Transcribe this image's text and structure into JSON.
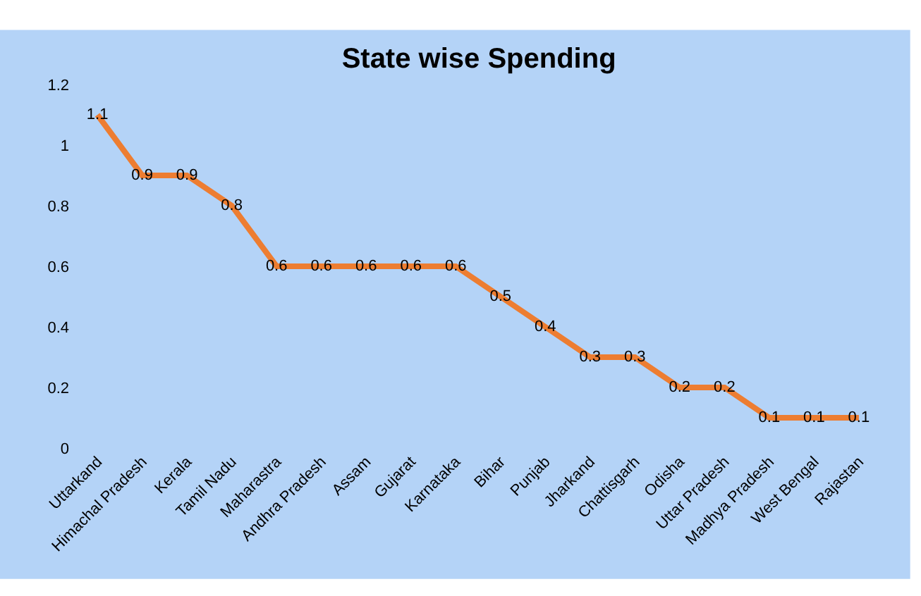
{
  "chart_data": {
    "type": "line",
    "title": "State wise Spending",
    "categories": [
      "Uttarkand",
      "Himachal Pradesh",
      "Kerala",
      "Tamil Nadu",
      "Maharastra",
      "Andhra Pradesh",
      "Assam",
      "Gujarat",
      "Karnataka",
      "Bihar",
      "Punjab",
      "Jharkand",
      "Chattisgarh",
      "Odisha",
      "Uttar Pradesh",
      "Madhya Pradesh",
      "West Bengal",
      "Rajastan"
    ],
    "values": [
      1.1,
      0.9,
      0.9,
      0.8,
      0.6,
      0.6,
      0.6,
      0.6,
      0.6,
      0.5,
      0.4,
      0.3,
      0.3,
      0.2,
      0.2,
      0.1,
      0.1,
      0.1
    ],
    "color": "#ed7d31",
    "ylim": [
      0,
      1.2
    ],
    "yticks": [
      0,
      0.2,
      0.4,
      0.6,
      0.8,
      1,
      1.2
    ],
    "data_labels": true,
    "grid": false,
    "legend": false,
    "marker": "none",
    "line_style": "solid"
  }
}
